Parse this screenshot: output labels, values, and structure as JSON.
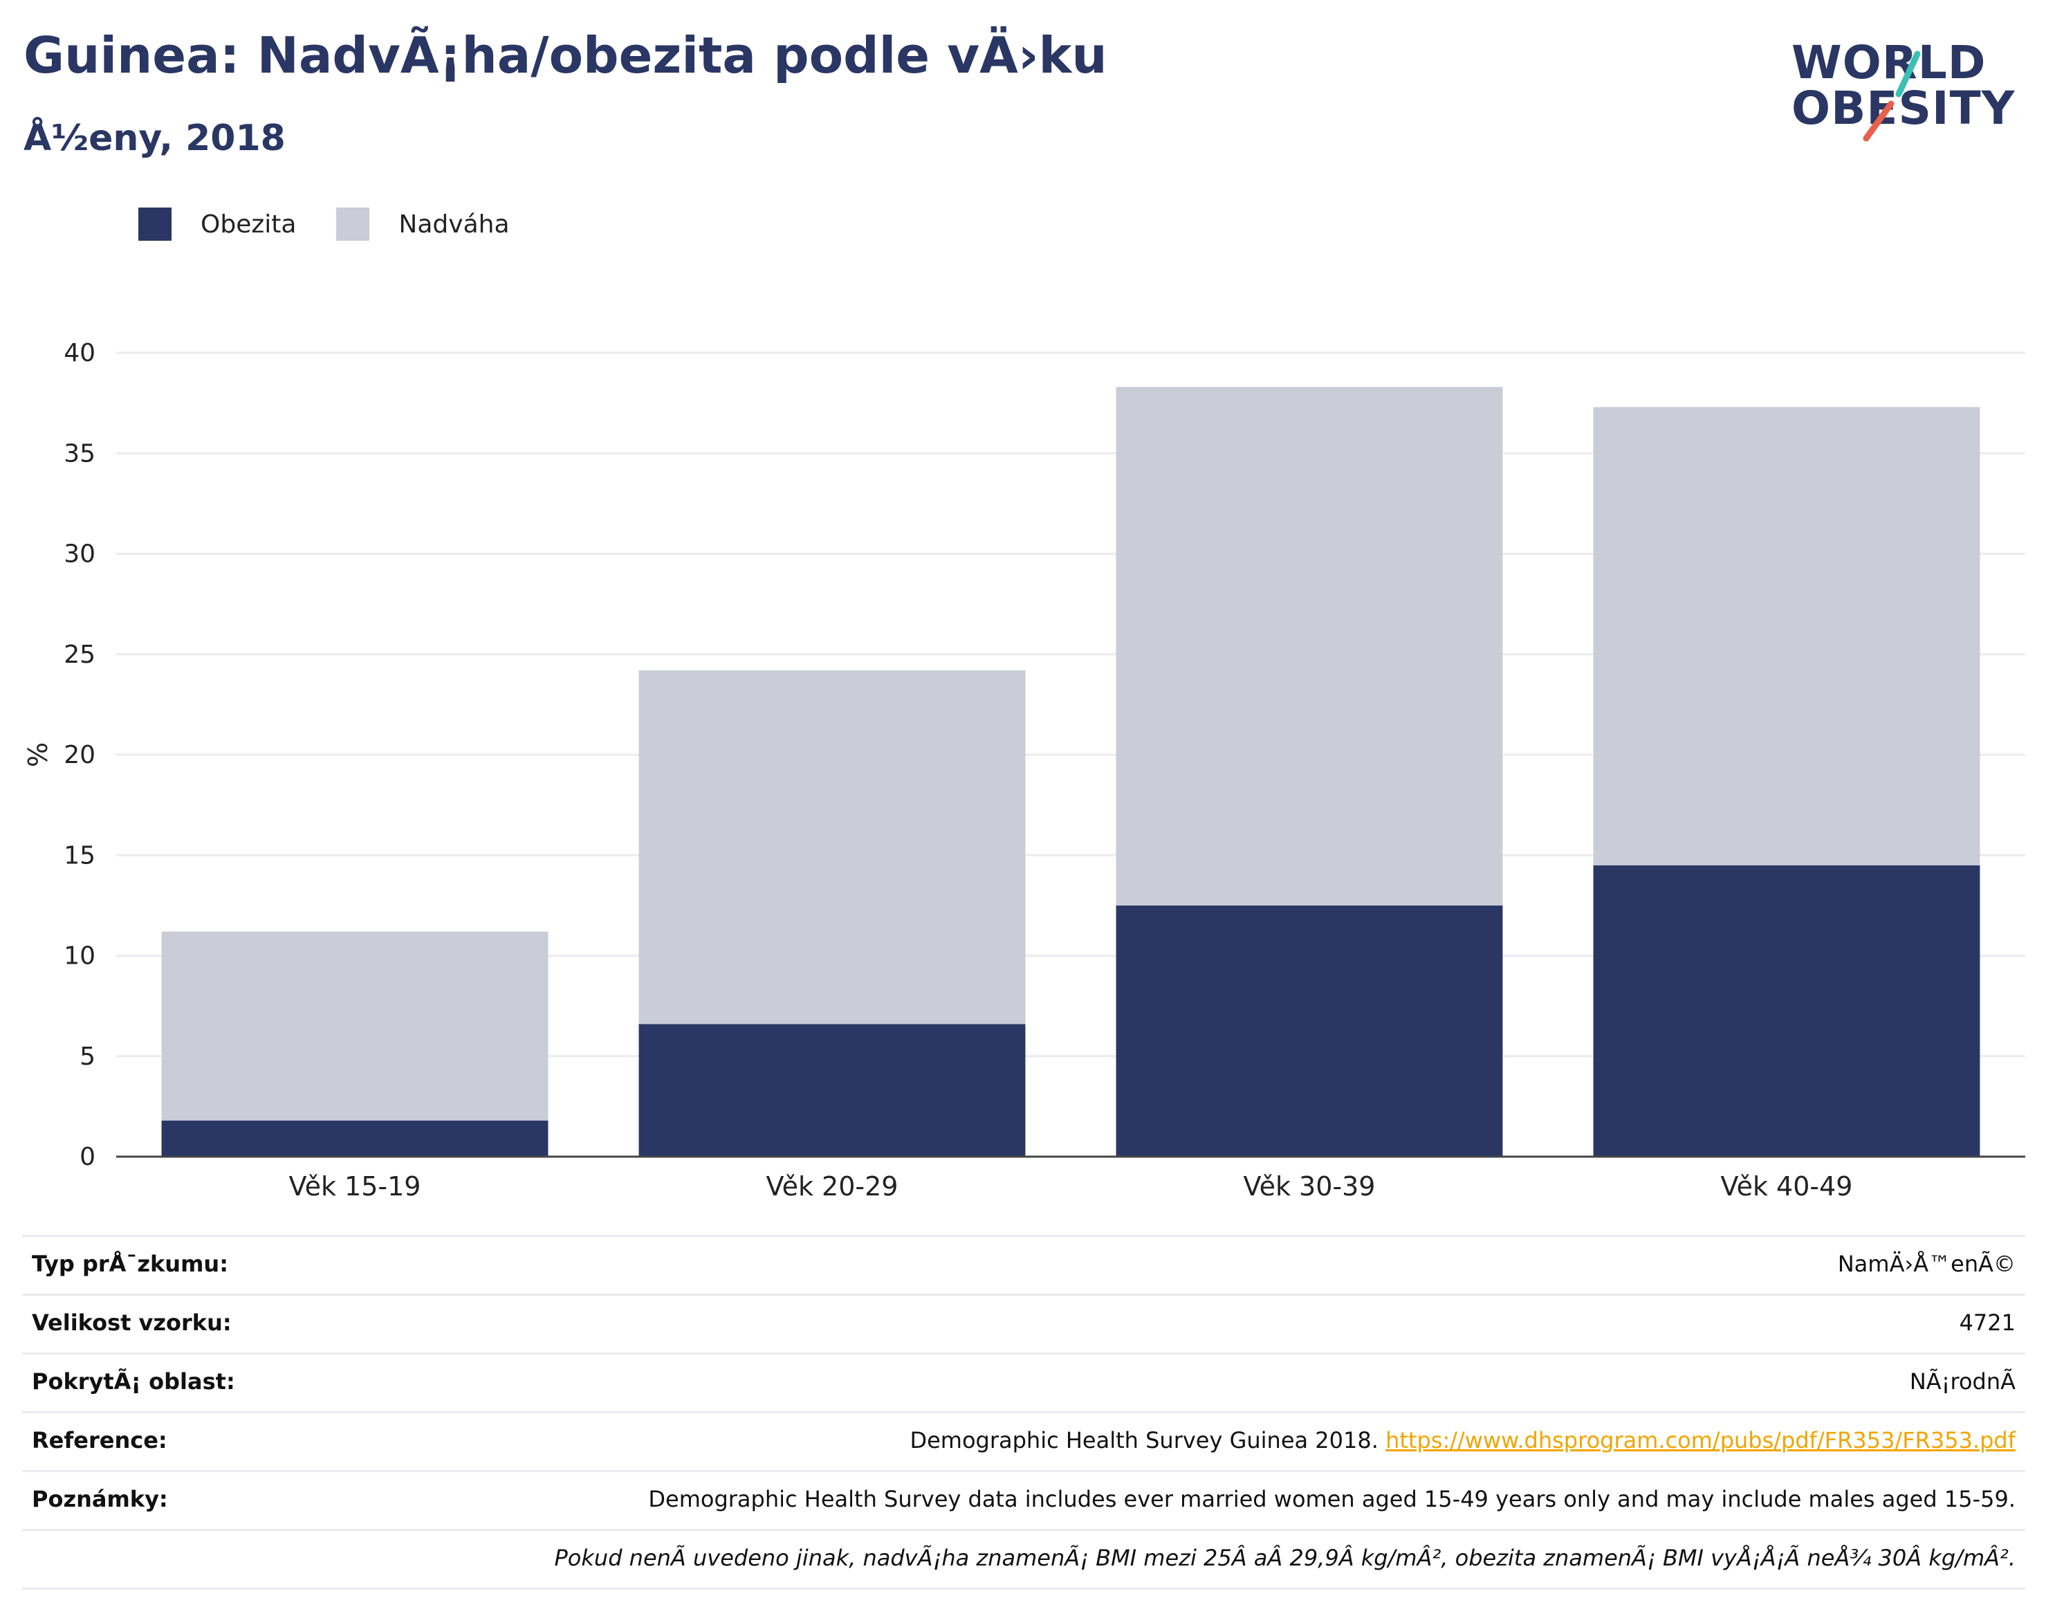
{
  "header": {
    "title": "Guinea: NadvÃ¡ha/obezita podle vÄ›ku",
    "subtitle": "Å½eny, 2018"
  },
  "logo": {
    "line1": "WORLD",
    "line2": "OBESITY",
    "colors": {
      "text": "#2a3764",
      "slash_top": "#3cbfb4",
      "slash_bottom": "#e8604c"
    }
  },
  "legend": {
    "items": [
      {
        "label": "Obezita",
        "color": "#2a3764"
      },
      {
        "label": "Nadváha",
        "color": "#cacdd8"
      }
    ]
  },
  "chart_data": {
    "type": "bar",
    "stacked": true,
    "categories": [
      "Věk 15-19",
      "Věk 20-29",
      "Věk 30-39",
      "Věk 40-49"
    ],
    "series": [
      {
        "name": "Obezita",
        "color": "#2a3764",
        "values": [
          1.8,
          6.6,
          12.5,
          14.5
        ]
      },
      {
        "name": "Nadváha",
        "color": "#cacdd8",
        "values": [
          9.4,
          17.6,
          25.8,
          22.8
        ]
      }
    ],
    "ylabel": "%",
    "ylim": [
      0,
      40
    ],
    "yticks": [
      0,
      5,
      10,
      15,
      20,
      25,
      30,
      35,
      40
    ],
    "grid": true,
    "legend_position": "top-left"
  },
  "meta": {
    "rows": [
      {
        "label": "Typ prÅ¯zkumu:",
        "value": "NamÄ›Å™enÃ©"
      },
      {
        "label": "Velikost vzorku:",
        "value": "4721"
      },
      {
        "label": "PokrytÃ¡ oblast:",
        "value": "NÃ¡rodnÃ"
      },
      {
        "label": "Reference:",
        "value": "Demographic Health Survey Guinea 2018. ",
        "link": "https://www.dhsprogram.com/pubs/pdf/FR353/FR353.pdf"
      },
      {
        "label": "Poznámky:",
        "value": "Demographic Health Survey data includes ever married women aged 15-49 years only and may include males aged 15-59."
      },
      {
        "label": "",
        "value": "Pokud nenÃ uvedeno jinak, nadvÃ¡ha znamenÃ¡ BMI mezi 25Â aÂ 29,9Â kg/mÂ², obezita znamenÃ¡ BMI vyÅ¡Å¡Ã neÅ¾ 30Â kg/mÂ².",
        "italic": true
      }
    ]
  }
}
